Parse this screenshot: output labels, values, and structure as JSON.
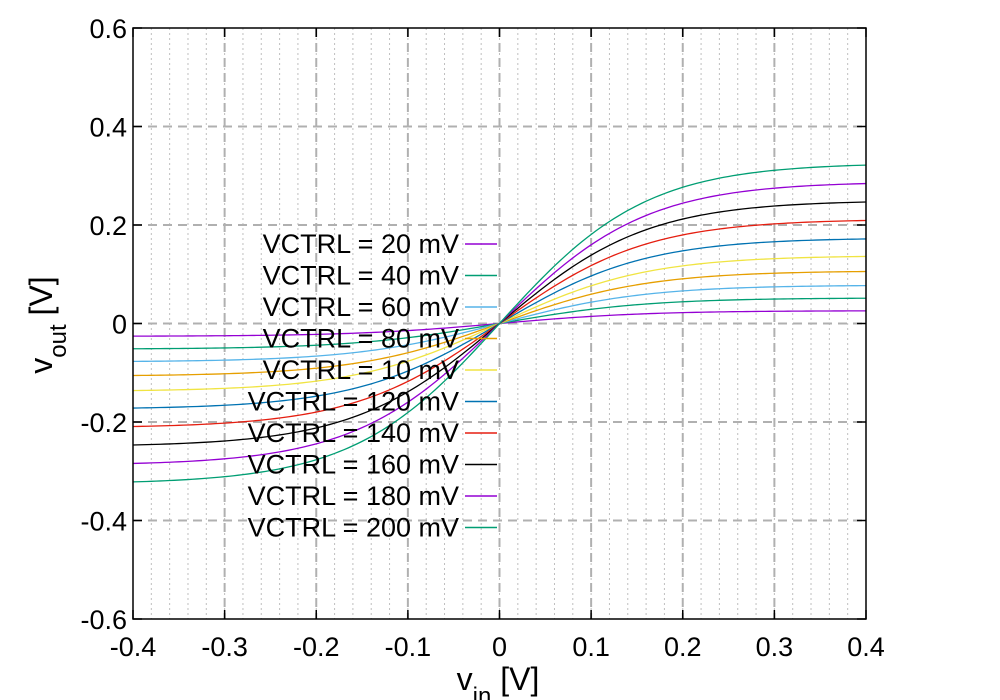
{
  "chart_data": {
    "type": "line",
    "xlabel": {
      "main": "v",
      "sub": "in",
      "unit": " [V]"
    },
    "ylabel": {
      "main": "v",
      "sub": "out",
      "unit": " [V]"
    },
    "xlim": [
      -0.4,
      0.4
    ],
    "ylim": [
      -0.6,
      0.6
    ],
    "x_major_ticks": [
      -0.4,
      -0.3,
      -0.2,
      -0.1,
      0,
      0.1,
      0.2,
      0.3,
      0.4
    ],
    "x_tick_labels": [
      "-0.4",
      "-0.3",
      "-0.2",
      "-0.1",
      "0",
      "0.1",
      "0.2",
      "0.3",
      "0.4"
    ],
    "y_major_ticks": [
      -0.6,
      -0.4,
      -0.2,
      0,
      0.2,
      0.4,
      0.6
    ],
    "y_tick_labels": [
      "-0.6",
      "-0.4",
      "-0.2",
      "0",
      "0.2",
      "0.4",
      "0.6"
    ],
    "x_minor_step": 0.02,
    "grid": true,
    "legend_position": "center-left",
    "series": [
      {
        "name": "VCTRL = 20  mV",
        "color": "#9400d3",
        "amplitude": 0.026,
        "transition": 0.16
      },
      {
        "name": "VCTRL = 40  mV",
        "color": "#009e73",
        "amplitude": 0.052,
        "transition": 0.16
      },
      {
        "name": "VCTRL = 60  mV",
        "color": "#56b4e9",
        "amplitude": 0.078,
        "transition": 0.16
      },
      {
        "name": "VCTRL = 80  mV",
        "color": "#e69f00",
        "amplitude": 0.107,
        "transition": 0.16
      },
      {
        "name": "VCTRL = 10  mV",
        "color": "#f0e442",
        "amplitude": 0.138,
        "transition": 0.16
      },
      {
        "name": "VCTRL = 120 mV",
        "color": "#0072b2",
        "amplitude": 0.174,
        "transition": 0.16
      },
      {
        "name": "VCTRL = 140 mV",
        "color": "#e51e10",
        "amplitude": 0.212,
        "transition": 0.16
      },
      {
        "name": "VCTRL = 160 mV",
        "color": "#000000",
        "amplitude": 0.25,
        "transition": 0.16
      },
      {
        "name": "VCTRL = 180 mV",
        "color": "#9400d3",
        "amplitude": 0.288,
        "transition": 0.16
      },
      {
        "name": "VCTRL = 200 mV",
        "color": "#009e73",
        "amplitude": 0.326,
        "transition": 0.16
      }
    ]
  }
}
